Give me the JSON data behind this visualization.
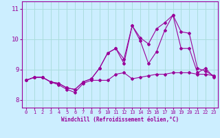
{
  "title": "",
  "xlabel": "Windchill (Refroidissement éolien,°C)",
  "ylabel": "",
  "bg_color": "#cceeff",
  "grid_color": "#aadddd",
  "line_color": "#990099",
  "xlim": [
    -0.5,
    23.5
  ],
  "ylim": [
    7.75,
    11.25
  ],
  "yticks": [
    8,
    9,
    10,
    11
  ],
  "xticks": [
    0,
    1,
    2,
    3,
    4,
    5,
    6,
    7,
    8,
    9,
    10,
    11,
    12,
    13,
    14,
    15,
    16,
    17,
    18,
    19,
    20,
    21,
    22,
    23
  ],
  "series1_x": [
    0,
    1,
    2,
    3,
    4,
    5,
    6,
    7,
    8,
    9,
    10,
    11,
    12,
    13,
    14,
    15,
    16,
    17,
    18,
    19,
    20,
    21,
    22,
    23
  ],
  "series1_y": [
    8.65,
    8.75,
    8.75,
    8.6,
    8.5,
    8.35,
    8.25,
    8.55,
    8.65,
    8.65,
    8.65,
    8.85,
    8.9,
    8.7,
    8.75,
    8.8,
    8.85,
    8.85,
    8.9,
    8.9,
    8.9,
    8.85,
    8.85,
    8.8
  ],
  "series2_x": [
    0,
    1,
    2,
    3,
    4,
    5,
    6,
    7,
    8,
    9,
    10,
    11,
    12,
    13,
    14,
    15,
    16,
    17,
    18,
    19,
    20,
    21,
    22,
    23
  ],
  "series2_y": [
    8.65,
    8.75,
    8.75,
    8.6,
    8.55,
    8.4,
    8.35,
    8.6,
    8.7,
    9.05,
    9.55,
    9.7,
    9.2,
    10.45,
    9.95,
    9.2,
    9.6,
    10.3,
    10.8,
    9.7,
    9.7,
    8.9,
    9.05,
    8.75
  ],
  "series3_x": [
    0,
    1,
    2,
    3,
    4,
    5,
    6,
    7,
    8,
    9,
    10,
    11,
    12,
    13,
    14,
    15,
    16,
    17,
    18,
    19,
    20,
    21,
    22,
    23
  ],
  "series3_y": [
    8.65,
    8.75,
    8.75,
    8.6,
    8.55,
    8.4,
    8.35,
    8.6,
    8.7,
    9.05,
    9.55,
    9.7,
    9.35,
    10.45,
    10.05,
    9.85,
    10.35,
    10.55,
    10.8,
    10.25,
    10.2,
    9.05,
    8.95,
    8.8
  ]
}
